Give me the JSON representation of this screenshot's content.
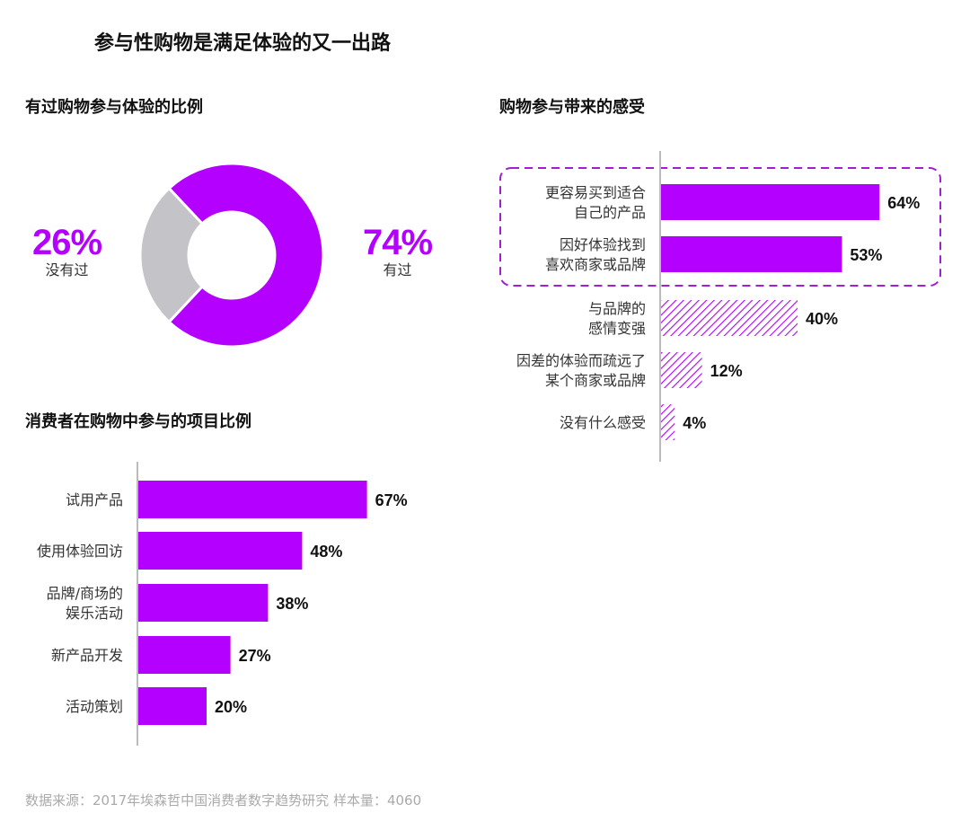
{
  "title": "参与性购物是满足体验的又一出路",
  "source": "数据来源：2017年埃森哲中国消费者数字趋势研究 样本量：4060",
  "colors": {
    "accent": "#b400ff",
    "gray": "#c4c3c8",
    "hatch": "#b400ff",
    "dashed_box": "#a020d0"
  },
  "chart_data": [
    {
      "type": "pie",
      "subtype": "donut",
      "title": "有过购物参与体验的比例",
      "slices": [
        {
          "label": "有过",
          "value": 74,
          "display": "74%",
          "color": "#b400ff"
        },
        {
          "label": "没有过",
          "value": 26,
          "display": "26%",
          "color": "#c4c3c8"
        }
      ]
    },
    {
      "type": "bar",
      "orientation": "horizontal",
      "title": "购物参与带来的感受",
      "categories": [
        [
          "更容易买到适合",
          "自己的产品"
        ],
        [
          "因好体验找到",
          "喜欢商家或品牌"
        ],
        [
          "与品牌的",
          "感情变强"
        ],
        [
          "因差的体验而疏远了",
          "某个商家或品牌"
        ],
        [
          "没有什么感受"
        ]
      ],
      "values": [
        64,
        53,
        40,
        12,
        4
      ],
      "labels": [
        "64%",
        "53%",
        "40%",
        "12%",
        "4%"
      ],
      "styles": [
        "solid",
        "solid",
        "hatched",
        "hatched",
        "hatched"
      ],
      "highlighted": [
        0,
        1
      ],
      "xlim": [
        0,
        100
      ]
    },
    {
      "type": "bar",
      "orientation": "horizontal",
      "title": "消费者在购物中参与的项目比例",
      "categories": [
        [
          "试用产品"
        ],
        [
          "使用体验回访"
        ],
        [
          "品牌/商场的",
          "娱乐活动"
        ],
        [
          "新产品开发"
        ],
        [
          "活动策划"
        ]
      ],
      "values": [
        67,
        48,
        38,
        27,
        20
      ],
      "labels": [
        "67%",
        "48%",
        "38%",
        "27%",
        "20%"
      ],
      "xlim": [
        0,
        100
      ]
    }
  ]
}
